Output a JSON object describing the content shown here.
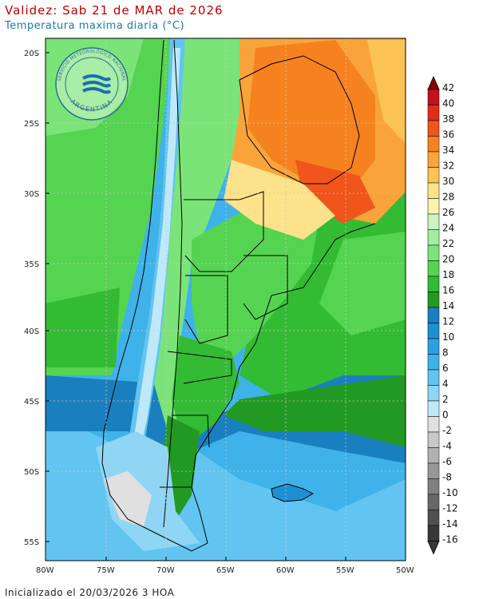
{
  "header": {
    "title": "Validez: Sab 21 de MAR de 2026",
    "subtitle": "Temperatura maxima diaria (°C)"
  },
  "footer": {
    "init": "Inicializado el 20/03/2026 3 HOA"
  },
  "logo": {
    "org": "SERVICIO METEOROLÓGICO NACIONAL",
    "country": "ARGENTINA"
  },
  "axes": {
    "lat_labels": [
      "20S",
      "25S",
      "30S",
      "35S",
      "40S",
      "45S",
      "50S",
      "55S"
    ],
    "lon_labels": [
      "80W",
      "75W",
      "70W",
      "65W",
      "60W",
      "55W",
      "50W"
    ]
  },
  "colorbar": {
    "labels": [
      "42",
      "40",
      "38",
      "36",
      "34",
      "32",
      "30",
      "28",
      "26",
      "24",
      "22",
      "20",
      "18",
      "16",
      "14",
      "12",
      "10",
      "8",
      "6",
      "4",
      "2",
      "0",
      "-2",
      "-4",
      "-6",
      "-8",
      "-10",
      "-12",
      "-14",
      "-16"
    ],
    "colors": [
      "#8b0000",
      "#c1121f",
      "#e02d1b",
      "#f0551c",
      "#f5821f",
      "#f9a43a",
      "#fbc254",
      "#fce28a",
      "#fff2b0",
      "#c8f5c0",
      "#a3eea0",
      "#7be478",
      "#55d451",
      "#33bb33",
      "#229922",
      "#1a7fbf",
      "#1f8fd4",
      "#2aa0e0",
      "#3fb2ea",
      "#62c4f0",
      "#8fd6f4",
      "#bfe9f9",
      "#e0e0e0",
      "#c8c8c8",
      "#b0b0b0",
      "#989898",
      "#808080",
      "#686868",
      "#505050",
      "#383838"
    ]
  }
}
